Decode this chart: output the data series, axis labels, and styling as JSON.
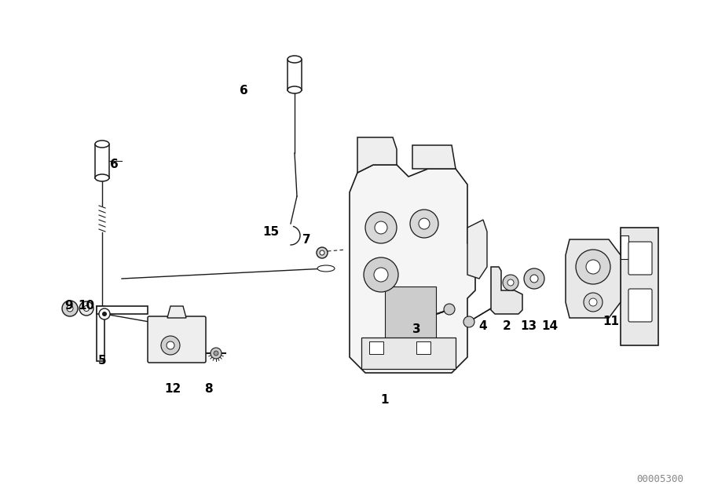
{
  "bg_color": "#ffffff",
  "lc": "#1a1a1a",
  "part_number": "00005300",
  "figsize": [
    9.0,
    6.37
  ],
  "dpi": 100,
  "labels": [
    [
      "6",
      310,
      115,
      11
    ],
    [
      "6",
      145,
      210,
      11
    ],
    [
      "15",
      345,
      295,
      11
    ],
    [
      "7",
      390,
      305,
      11
    ],
    [
      "9",
      88,
      390,
      11
    ],
    [
      "10",
      110,
      390,
      11
    ],
    [
      "5",
      130,
      460,
      11
    ],
    [
      "12",
      220,
      495,
      11
    ],
    [
      "8",
      265,
      495,
      11
    ],
    [
      "3",
      530,
      420,
      11
    ],
    [
      "1",
      490,
      510,
      11
    ],
    [
      "4",
      615,
      415,
      11
    ],
    [
      "2",
      645,
      415,
      11
    ],
    [
      "13",
      673,
      415,
      11
    ],
    [
      "14",
      700,
      415,
      11
    ],
    [
      "11",
      778,
      410,
      11
    ]
  ]
}
